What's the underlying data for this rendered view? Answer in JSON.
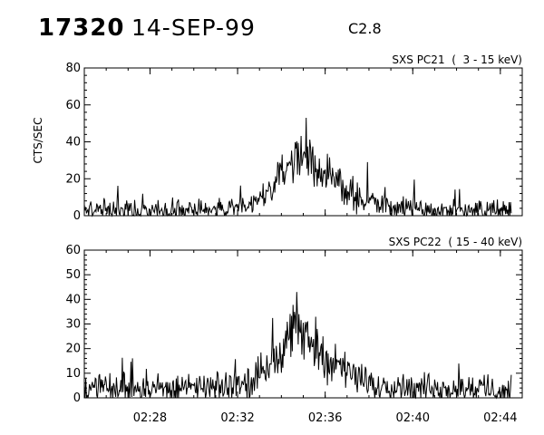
{
  "header": {
    "event_id": "17320",
    "date": "14-SEP-99",
    "flare_class": "C2.8"
  },
  "chart_data": [
    {
      "type": "line",
      "title": "SXS PC21  (  3 - 15 keV)",
      "ylabel": "CTS/SEC",
      "xlabel": "",
      "xlim": [
        "02:25",
        "02:45"
      ],
      "ylim": [
        0,
        80
      ],
      "yticks": [
        0,
        20,
        40,
        60,
        80
      ],
      "yticklabels": [
        "0",
        "20",
        "40",
        "60",
        "80"
      ],
      "xticklabels": [],
      "grid": false,
      "series": [
        {
          "x": [
            "02:25:00",
            "02:26:00",
            "02:27:00",
            "02:28:00",
            "02:29:00",
            "02:30:00",
            "02:31:00",
            "02:32:00",
            "02:32:30",
            "02:33:00",
            "02:33:30",
            "02:34:00",
            "02:34:20",
            "02:34:40",
            "02:35:00",
            "02:35:20",
            "02:35:40",
            "02:36:00",
            "02:36:30",
            "02:37:00",
            "02:37:30",
            "02:38:00",
            "02:38:30",
            "02:39:00",
            "02:40:00",
            "02:41:00",
            "02:42:00",
            "02:43:00",
            "02:44:00",
            "02:44:30"
          ],
          "values": [
            3,
            3,
            3,
            3,
            3,
            3,
            3,
            4,
            5,
            8,
            14,
            22,
            29,
            32,
            32,
            30,
            27,
            23,
            18,
            13,
            9,
            7,
            6,
            5,
            4,
            3,
            3,
            3,
            3,
            2
          ]
        }
      ],
      "spikes": [
        {
          "x": "02:35:07",
          "y": 53
        },
        {
          "x": "02:37:56",
          "y": 29
        }
      ]
    },
    {
      "type": "line",
      "title": "SXS PC22  ( 15 - 40 keV)",
      "ylabel": "",
      "xlabel": "",
      "xlim": [
        "02:25",
        "02:45"
      ],
      "ylim": [
        0,
        60
      ],
      "yticks": [
        0,
        10,
        20,
        30,
        40,
        50,
        60
      ],
      "yticklabels": [
        "0",
        "10",
        "20",
        "30",
        "40",
        "50",
        "60"
      ],
      "xticks": [
        "02:28",
        "02:32",
        "02:36",
        "02:40",
        "02:44"
      ],
      "xticklabels": [
        "02:28",
        "02:32",
        "02:36",
        "02:40",
        "02:44"
      ],
      "grid": false,
      "series": [
        {
          "x": [
            "02:25:00",
            "02:26:00",
            "02:27:00",
            "02:28:00",
            "02:29:00",
            "02:30:00",
            "02:31:00",
            "02:32:00",
            "02:32:30",
            "02:33:00",
            "02:33:30",
            "02:34:00",
            "02:34:20",
            "02:34:40",
            "02:35:00",
            "02:35:20",
            "02:35:40",
            "02:36:00",
            "02:36:30",
            "02:37:00",
            "02:37:30",
            "02:38:00",
            "02:38:30",
            "02:39:00",
            "02:40:00",
            "02:41:00",
            "02:42:00",
            "02:43:00",
            "02:44:00",
            "02:44:30"
          ],
          "values": [
            4,
            4,
            4,
            4,
            4,
            4,
            4,
            5,
            6,
            9,
            15,
            21,
            25,
            27,
            26,
            24,
            20,
            17,
            13,
            10,
            8,
            6,
            5,
            5,
            4,
            4,
            4,
            4,
            3,
            3
          ]
        }
      ],
      "spikes": [
        {
          "x": "02:34:42",
          "y": 43
        }
      ]
    }
  ]
}
